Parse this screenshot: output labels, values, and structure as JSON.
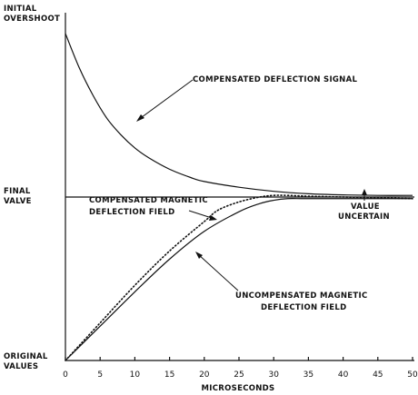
{
  "chart_data": {
    "type": "line",
    "xlabel": "MICROSECONDS",
    "ylabel": "",
    "xlim": [
      0,
      50
    ],
    "ylim": [
      0,
      2
    ],
    "x_ticks": [
      0,
      5,
      10,
      15,
      20,
      25,
      30,
      35,
      40,
      45,
      50
    ],
    "y_tick_labels": [
      {
        "value": 2,
        "lines": [
          "INITIAL",
          "OVERSHOOT"
        ]
      },
      {
        "value": 1,
        "lines": [
          "FINAL",
          "VALVE"
        ]
      },
      {
        "value": 0,
        "lines": [
          "ORIGINAL",
          "VALUES"
        ]
      }
    ],
    "series": [
      {
        "name": "COMPENSATED DEFLECTION SIGNAL",
        "style": "solid",
        "x": [
          0,
          2,
          4,
          6,
          8,
          10,
          12,
          15,
          18,
          20,
          25,
          30,
          35,
          40,
          45,
          50
        ],
        "y": [
          2.0,
          1.79,
          1.62,
          1.48,
          1.38,
          1.3,
          1.24,
          1.17,
          1.12,
          1.095,
          1.06,
          1.035,
          1.02,
          1.013,
          1.01,
          1.01
        ]
      },
      {
        "name": "COMPENSATED MAGNETIC DEFLECTION FIELD",
        "style": "dotted",
        "x": [
          0,
          5,
          10,
          15,
          20,
          22,
          25,
          28,
          30,
          32,
          35,
          40,
          45,
          50
        ],
        "y": [
          0,
          0.23,
          0.46,
          0.67,
          0.85,
          0.92,
          0.97,
          1.0,
          1.01,
          1.01,
          1.005,
          1.0,
          0.995,
          0.99
        ]
      },
      {
        "name": "UNCOMPENSATED MAGNETIC DEFLECTION FIELD",
        "style": "solid",
        "x": [
          0,
          5,
          10,
          15,
          20,
          25,
          28,
          30,
          32,
          34,
          36,
          40,
          45,
          50
        ],
        "y": [
          0,
          0.21,
          0.42,
          0.62,
          0.79,
          0.91,
          0.96,
          0.98,
          0.99,
          0.99,
          0.99,
          0.99,
          0.99,
          0.99
        ]
      },
      {
        "name": "FINAL VALUE",
        "style": "solid",
        "x": [
          0,
          50
        ],
        "y": [
          1,
          1
        ]
      }
    ],
    "annotations": [
      {
        "id": "signal",
        "lines": [
          "COMPENSATED DEFLECTION SIGNAL"
        ]
      },
      {
        "id": "comp-field",
        "lines": [
          "COMPENSATED MAGNETIC",
          "DEFLECTION FIELD"
        ]
      },
      {
        "id": "uncomp-field",
        "lines": [
          "UNCOMPENSATED MAGNETIC",
          "DEFLECTION FIELD"
        ]
      },
      {
        "id": "uncertain",
        "lines": [
          "VALUE",
          "UNCERTAIN"
        ]
      }
    ]
  }
}
